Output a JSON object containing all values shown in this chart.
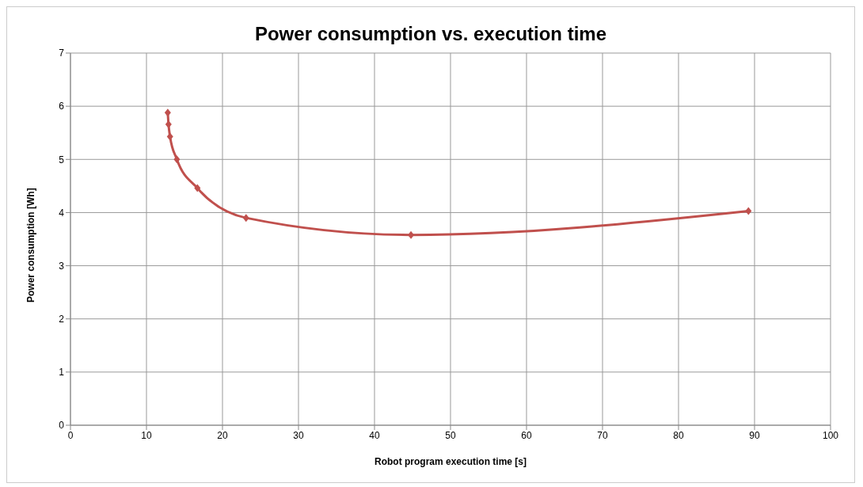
{
  "chart_data": {
    "type": "line",
    "title": "Power consumption vs. execution time",
    "xlabel": "Robot program execution time [s]",
    "ylabel": "Power consumption [Wh]",
    "x": [
      12.8,
      12.9,
      13.1,
      14.0,
      16.7,
      23.1,
      44.8,
      89.2
    ],
    "series": [
      {
        "color": "#c0504d",
        "values": [
          5.88,
          5.66,
          5.43,
          5.0,
          4.46,
          3.9,
          3.58,
          4.03
        ]
      }
    ],
    "xlim": [
      0,
      100
    ],
    "xticks": [
      0,
      10,
      20,
      30,
      40,
      50,
      60,
      70,
      80,
      90,
      100
    ],
    "ylim": [
      0,
      7
    ],
    "yticks": [
      0,
      1,
      2,
      3,
      4,
      5,
      6,
      7
    ],
    "grid": true,
    "marker": "diamond",
    "line_style": "solid"
  }
}
